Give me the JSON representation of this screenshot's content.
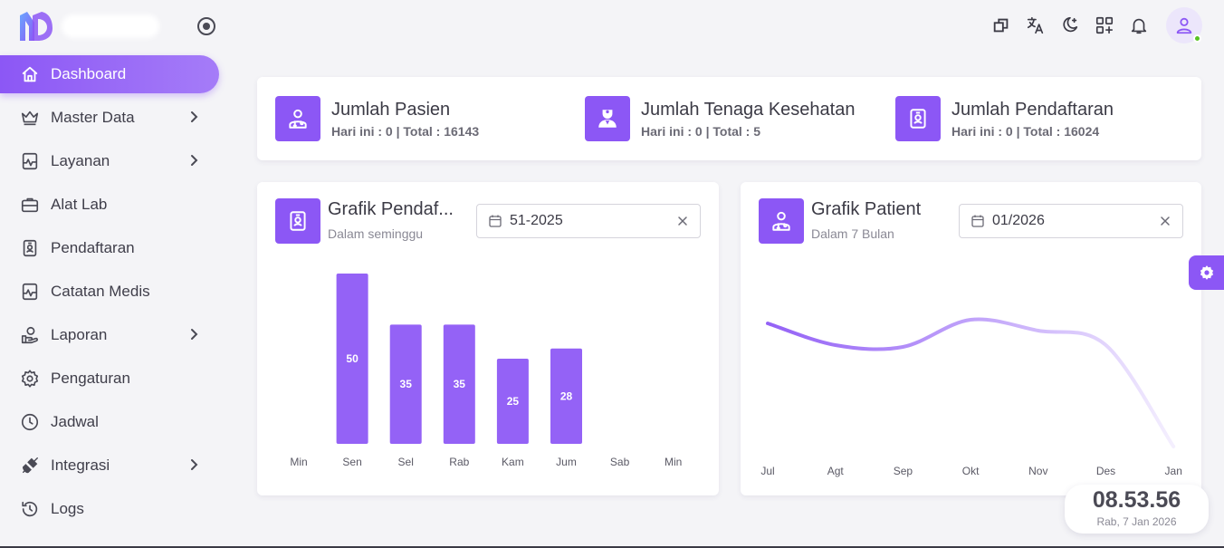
{
  "nav": {
    "items": [
      {
        "label": "Dashboard"
      },
      {
        "label": "Master Data"
      },
      {
        "label": "Layanan"
      },
      {
        "label": "Alat Lab"
      },
      {
        "label": "Pendaftaran"
      },
      {
        "label": "Catatan Medis"
      },
      {
        "label": "Laporan"
      },
      {
        "label": "Pengaturan"
      },
      {
        "label": "Jadwal"
      },
      {
        "label": "Integrasi"
      },
      {
        "label": "Logs"
      }
    ]
  },
  "stats": [
    {
      "title": "Jumlah Pasien",
      "sub": "Hari ini : 0 | Total : 16143"
    },
    {
      "title": "Jumlah Tenaga Kesehatan",
      "sub": "Hari ini : 0 | Total : 5"
    },
    {
      "title": "Jumlah Pendaftaran",
      "sub": "Hari ini : 0 | Total : 16024"
    }
  ],
  "charts": {
    "left": {
      "title": "Grafik Pendaf...",
      "subtitle": "Dalam seminggu",
      "date": "51-2025"
    },
    "right": {
      "title": "Grafik Patient",
      "subtitle": "Dalam 7 Bulan",
      "date": "01/2026"
    }
  },
  "chart_data": [
    {
      "type": "bar",
      "categories": [
        "Min",
        "Sen",
        "Sel",
        "Rab",
        "Kam",
        "Jum",
        "Sab",
        "Min"
      ],
      "values": [
        0,
        50,
        35,
        35,
        25,
        28,
        0,
        0
      ],
      "data_labels": [
        "",
        "50",
        "35",
        "35",
        "25",
        "28",
        "",
        ""
      ],
      "ylim": [
        0,
        50
      ],
      "grid": false,
      "color": "#9462f6"
    },
    {
      "type": "line",
      "categories": [
        "Jul",
        "Agt",
        "Sep",
        "Okt",
        "Nov",
        "Des",
        "Jan"
      ],
      "values": [
        36,
        30,
        29.5,
        37,
        34,
        30,
        2
      ],
      "ylim": [
        0,
        45
      ],
      "grid": false,
      "color": "#9462f6"
    }
  ],
  "clock": {
    "time": "08.53.56",
    "date": "Rab, 7 Jan 2026"
  },
  "colors": {
    "accent": "#8c57f5",
    "online": "#58c322"
  }
}
